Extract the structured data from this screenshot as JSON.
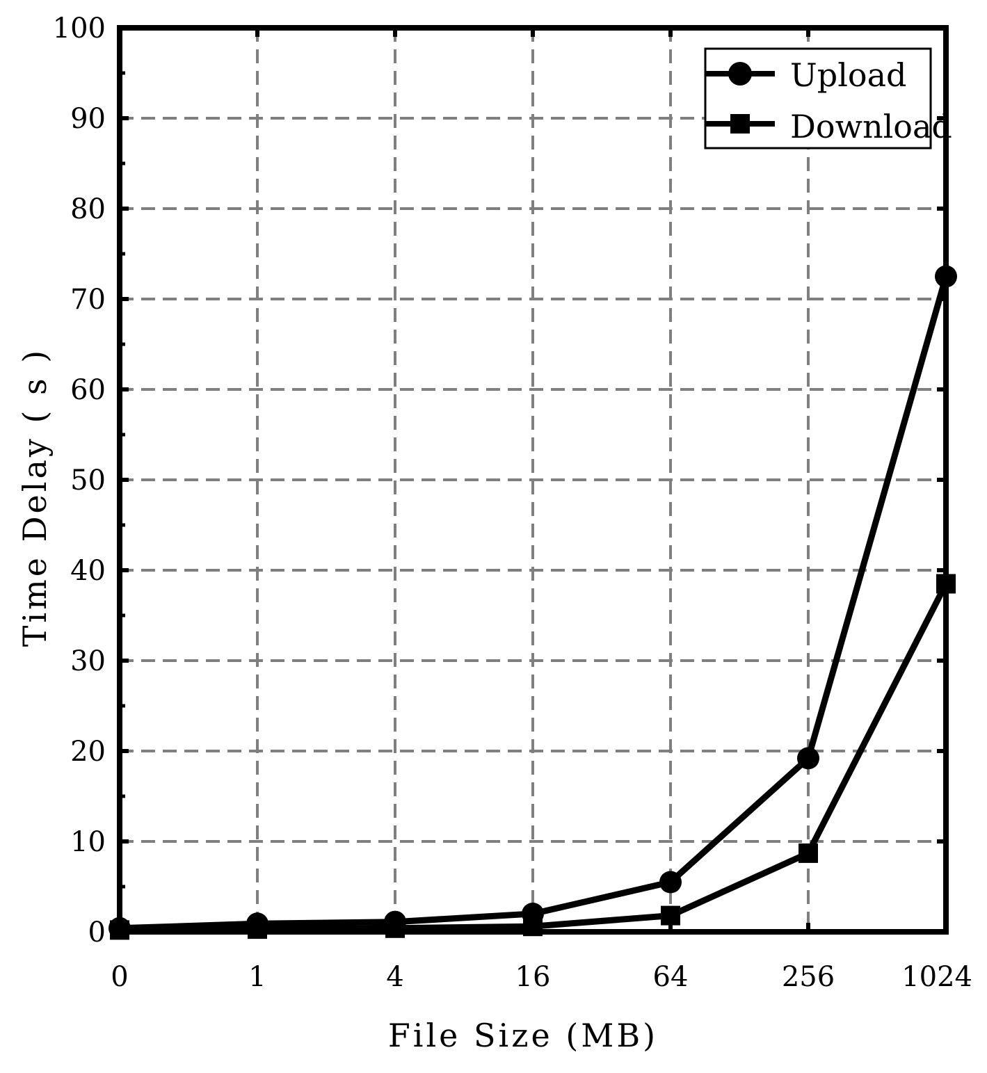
{
  "chart_data": {
    "type": "line",
    "categories": [
      "0",
      "1",
      "4",
      "16",
      "64",
      "256",
      "1024"
    ],
    "series": [
      {
        "name": "Upload",
        "marker": "circle",
        "values": [
          0.4,
          0.9,
          1.1,
          2.0,
          5.5,
          19.2,
          72.5
        ]
      },
      {
        "name": "Download",
        "marker": "square",
        "values": [
          0.2,
          0.3,
          0.4,
          0.6,
          1.8,
          8.7,
          38.5
        ]
      }
    ],
    "title": "",
    "xlabel": "File Size (MB)",
    "ylabel": "Time Delay ( s )",
    "ylim": [
      0,
      100
    ],
    "yticks": [
      0,
      10,
      20,
      30,
      40,
      50,
      60,
      70,
      80,
      90,
      100
    ],
    "grid": true,
    "legend_position": "top-right",
    "colors": {
      "line": "#000000",
      "grid": "#7f7f7f",
      "background": "#ffffff"
    }
  }
}
